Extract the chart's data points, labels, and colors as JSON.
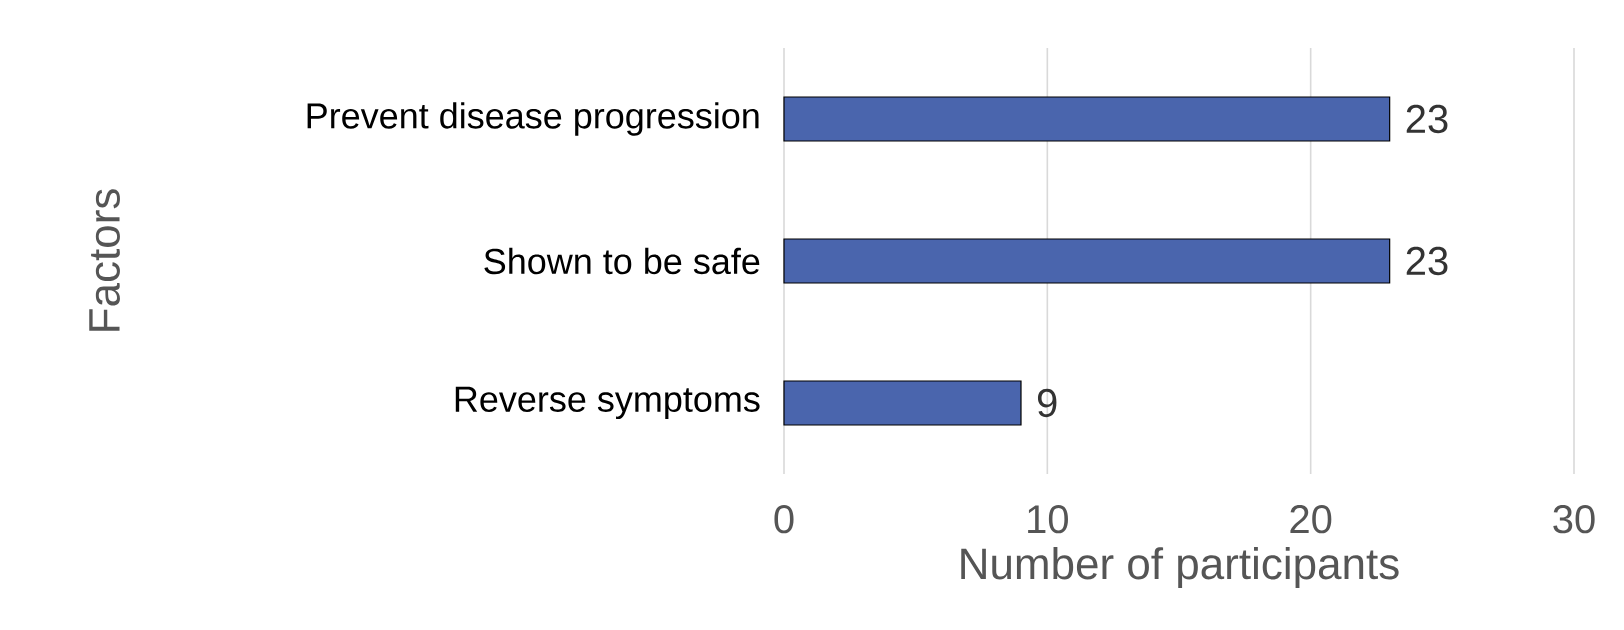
{
  "chart_data": {
    "type": "bar",
    "orientation": "horizontal",
    "categories": [
      "Prevent disease progression",
      "Shown to be safe",
      "Reverse symptoms"
    ],
    "values": [
      23,
      23,
      9
    ],
    "color": "#4a65ad",
    "xlim": [
      0,
      30
    ],
    "xticks": [
      0,
      10,
      20,
      30
    ],
    "grid": "x",
    "data_labels": true,
    "xlabel": "Number of participants",
    "ylabel": "Factors"
  }
}
